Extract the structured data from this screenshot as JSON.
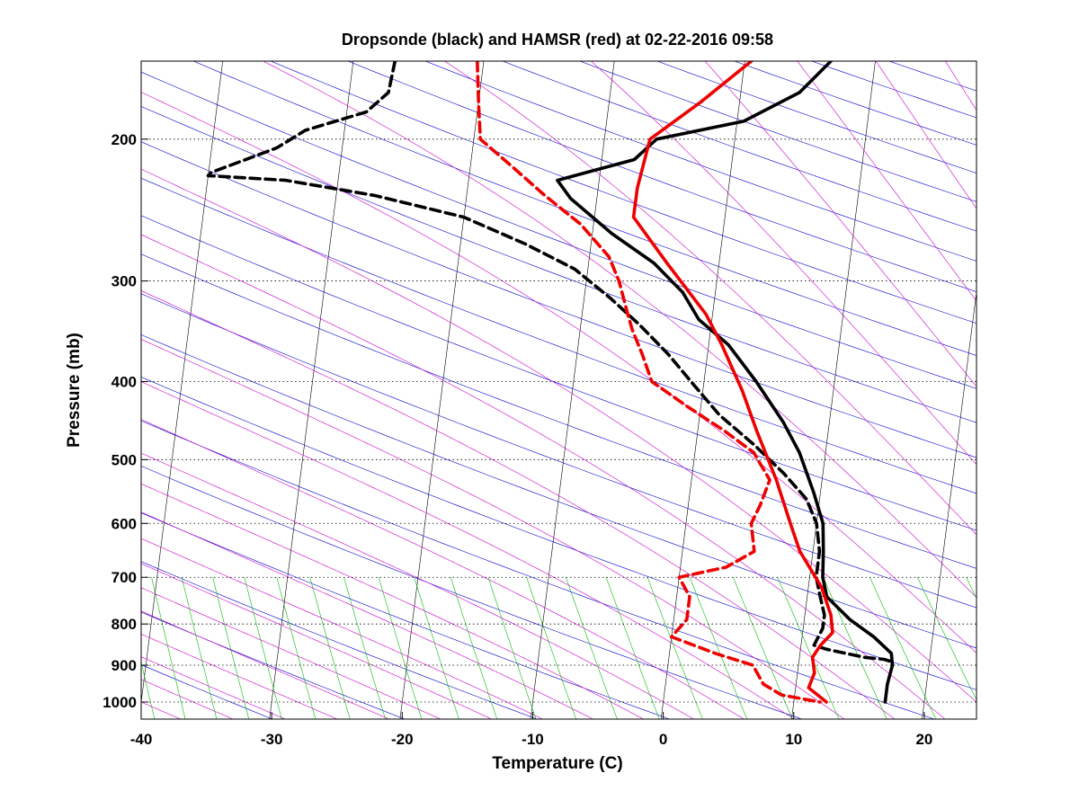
{
  "chart_data": {
    "type": "line",
    "title": "Dropsonde (black) and HAMSR (red) at 02-22-2016 09:58",
    "xlabel": "Temperature (C)",
    "ylabel": "Pressure (mb)",
    "xlim": [
      -40,
      24
    ],
    "ylim": [
      1050,
      160
    ],
    "y_scale": "log",
    "x_ticks": [
      -40,
      -30,
      -20,
      -10,
      0,
      10,
      20
    ],
    "y_ticks": [
      200,
      300,
      400,
      500,
      600,
      700,
      800,
      900,
      1000
    ],
    "grid": "dotted at pressure ticks",
    "background_lines": [
      {
        "name": "isotherms",
        "color": "#000000"
      },
      {
        "name": "dry adiabats",
        "color": "#0000cc"
      },
      {
        "name": "moist adiabats",
        "color": "#cc00cc"
      },
      {
        "name": "mixing ratio",
        "color": "#00bb00"
      }
    ],
    "series": [
      {
        "color": "#000000",
        "style": "solid",
        "points": [
          [
            6.6,
            160
          ],
          [
            4.5,
            175
          ],
          [
            0.5,
            190
          ],
          [
            -6.0,
            200
          ],
          [
            -7.5,
            212
          ],
          [
            -13.2,
            225
          ],
          [
            -12,
            237
          ],
          [
            -8.5,
            262
          ],
          [
            -5.0,
            285
          ],
          [
            -2.5,
            310
          ],
          [
            -1.0,
            335
          ],
          [
            1.5,
            360
          ],
          [
            4.0,
            400
          ],
          [
            6.5,
            450
          ],
          [
            8.0,
            490
          ],
          [
            9.5,
            550
          ],
          [
            10.5,
            600
          ],
          [
            10.8,
            650
          ],
          [
            11.0,
            700
          ],
          [
            11.5,
            740
          ],
          [
            13.5,
            790
          ],
          [
            15.5,
            830
          ],
          [
            17.0,
            870
          ],
          [
            17.2,
            900
          ],
          [
            17.0,
            950
          ],
          [
            17.0,
            1000
          ]
        ]
      },
      {
        "color": "#000000",
        "style": "dashed",
        "points": [
          [
            -26.8,
            160
          ],
          [
            -27.0,
            175
          ],
          [
            -28.5,
            185
          ],
          [
            -33.0,
            195
          ],
          [
            -35.0,
            205
          ],
          [
            -39.8,
            220
          ],
          [
            -40.0,
            222
          ],
          [
            -34.0,
            225
          ],
          [
            -27.0,
            235
          ],
          [
            -20.0,
            250
          ],
          [
            -15.0,
            270
          ],
          [
            -11.0,
            290
          ],
          [
            -8.0,
            315
          ],
          [
            -5.5,
            340
          ],
          [
            -3.0,
            370
          ],
          [
            -1.0,
            400
          ],
          [
            1.5,
            440
          ],
          [
            4.5,
            480
          ],
          [
            7.0,
            520
          ],
          [
            9.0,
            560
          ],
          [
            10.0,
            600
          ],
          [
            10.5,
            650
          ],
          [
            10.5,
            700
          ],
          [
            11.0,
            740
          ],
          [
            11.5,
            780
          ],
          [
            11.5,
            810
          ],
          [
            11.0,
            850
          ],
          [
            12.0,
            860
          ],
          [
            13.5,
            870
          ],
          [
            15.0,
            880
          ],
          [
            16.5,
            885
          ],
          [
            17.0,
            890
          ]
        ]
      },
      {
        "color": "#ee0000",
        "style": "solid",
        "points": [
          [
            0.5,
            160
          ],
          [
            -3.0,
            180
          ],
          [
            -6.5,
            200
          ],
          [
            -7.0,
            230
          ],
          [
            -7.0,
            250
          ],
          [
            -4.0,
            285
          ],
          [
            -0.5,
            330
          ],
          [
            1.0,
            360
          ],
          [
            3.0,
            410
          ],
          [
            4.5,
            460
          ],
          [
            6.5,
            530
          ],
          [
            8.0,
            600
          ],
          [
            9.0,
            650
          ],
          [
            11.0,
            720
          ],
          [
            12.0,
            780
          ],
          [
            12.3,
            820
          ],
          [
            11.5,
            850
          ],
          [
            11.0,
            880
          ],
          [
            11.3,
            920
          ],
          [
            11.0,
            960
          ],
          [
            12.5,
            1000
          ]
        ]
      },
      {
        "color": "#ee0000",
        "style": "dashed",
        "points": [
          [
            -20.5,
            160
          ],
          [
            -20.0,
            180
          ],
          [
            -19.5,
            200
          ],
          [
            -17.0,
            215
          ],
          [
            -14.0,
            235
          ],
          [
            -11.0,
            255
          ],
          [
            -8.5,
            280
          ],
          [
            -7.5,
            300
          ],
          [
            -6.5,
            330
          ],
          [
            -6.0,
            345
          ],
          [
            -5.0,
            370
          ],
          [
            -4.0,
            400
          ],
          [
            -1.0,
            430
          ],
          [
            2.0,
            460
          ],
          [
            4.5,
            490
          ],
          [
            6.0,
            530
          ],
          [
            5.5,
            570
          ],
          [
            5.0,
            600
          ],
          [
            5.5,
            650
          ],
          [
            3.5,
            680
          ],
          [
            0.0,
            700
          ],
          [
            1.0,
            740
          ],
          [
            1.0,
            790
          ],
          [
            0.0,
            830
          ],
          [
            3.5,
            870
          ],
          [
            6.5,
            900
          ],
          [
            7.5,
            950
          ],
          [
            9.0,
            980
          ],
          [
            12.0,
            1000
          ]
        ]
      }
    ]
  }
}
